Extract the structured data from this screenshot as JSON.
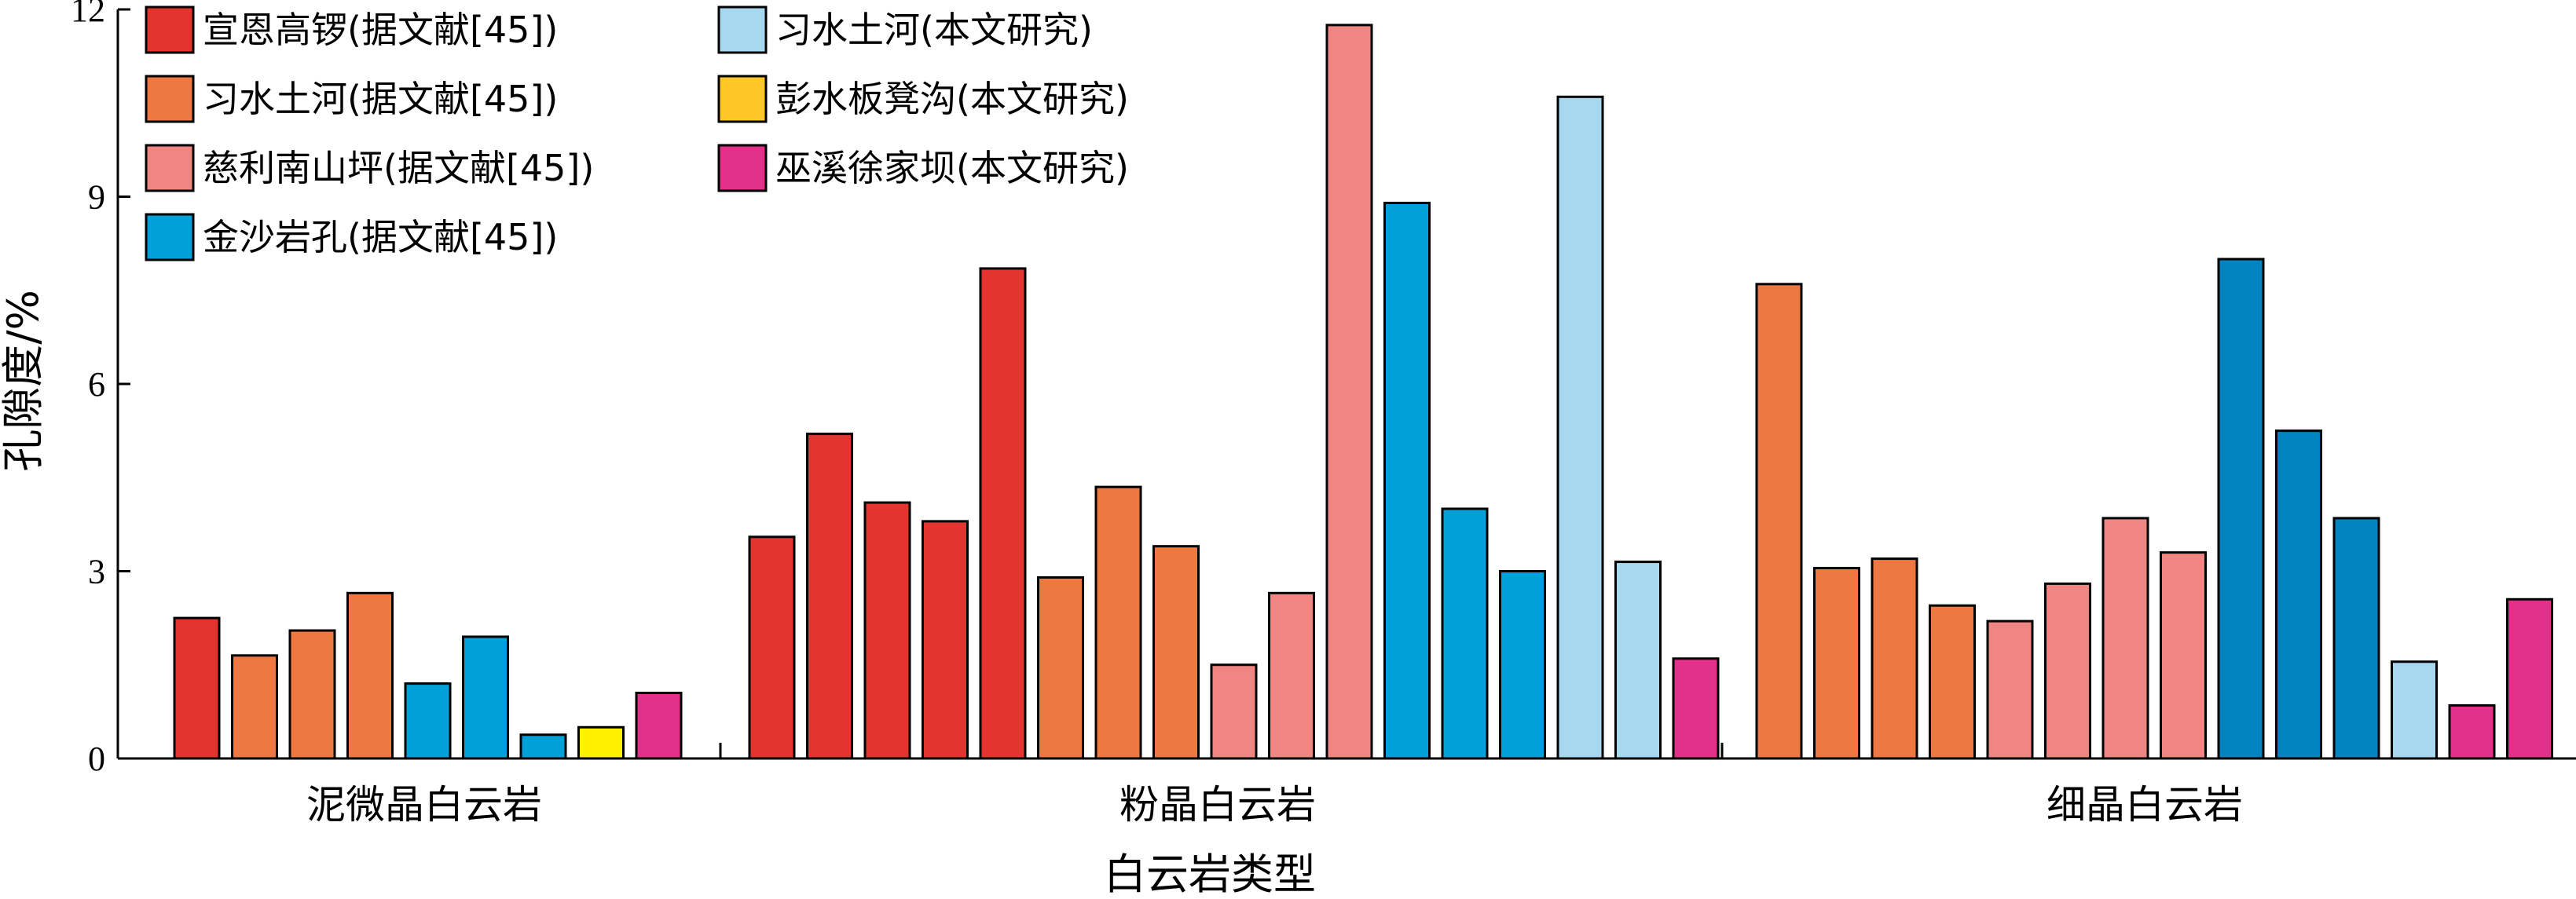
{
  "chart_data": {
    "type": "bar",
    "xlabel": "白云岩类型",
    "ylabel": "孔隙度/%",
    "ylim": [
      0,
      12
    ],
    "yticks": [
      "0",
      "3",
      "6",
      "9",
      "12"
    ],
    "categories": [
      "泥微晶白云岩",
      "粉晶白云岩",
      "细晶白云岩"
    ],
    "legend": [
      {
        "label": "宣恩高锣(据文献[45])",
        "color": "#e3342f"
      },
      {
        "label": "习水土河(据文献[45])",
        "color": "#ef7741"
      },
      {
        "label": "慈利南山坪(据文献[45])",
        "color": "#f08682"
      },
      {
        "label": "金沙岩孔(据文献[45])",
        "color": "#00a0d8"
      },
      {
        "label": "习水土河(本文研究)",
        "color": "#a7d8ef"
      },
      {
        "label": "彭水板凳沟(本文研究)",
        "color": "#ffc628"
      },
      {
        "label": "巫溪徐家坝(本文研究)",
        "color": "#e3308b"
      }
    ],
    "bars": [
      [
        {
          "value": 2.25,
          "color": "#e3342f"
        },
        {
          "value": 1.65,
          "color": "#ef7741"
        },
        {
          "value": 2.05,
          "color": "#ef7741"
        },
        {
          "value": 2.65,
          "color": "#ef7741"
        },
        {
          "value": 1.2,
          "color": "#00a0d8"
        },
        {
          "value": 1.95,
          "color": "#00a0d8"
        },
        {
          "value": 0.38,
          "color": "#00a0d8"
        },
        {
          "value": 0.5,
          "color": "#fff100"
        },
        {
          "value": 1.05,
          "color": "#e3308b"
        }
      ],
      [
        {
          "value": 3.55,
          "color": "#e3342f"
        },
        {
          "value": 5.2,
          "color": "#e3342f"
        },
        {
          "value": 4.1,
          "color": "#e3342f"
        },
        {
          "value": 3.8,
          "color": "#e3342f"
        },
        {
          "value": 7.85,
          "color": "#e3342f"
        },
        {
          "value": 2.9,
          "color": "#ef7741"
        },
        {
          "value": 4.35,
          "color": "#ef7741"
        },
        {
          "value": 3.4,
          "color": "#ef7741"
        },
        {
          "value": 1.5,
          "color": "#f08682"
        },
        {
          "value": 2.65,
          "color": "#f08682"
        },
        {
          "value": 11.75,
          "color": "#f08682"
        },
        {
          "value": 8.9,
          "color": "#00a0d8"
        },
        {
          "value": 4.0,
          "color": "#00a0d8"
        },
        {
          "value": 3.0,
          "color": "#00a0d8"
        },
        {
          "value": 10.6,
          "color": "#a7d8ef"
        },
        {
          "value": 3.15,
          "color": "#a7d8ef"
        },
        {
          "value": 1.6,
          "color": "#e3308b"
        }
      ],
      [
        {
          "value": 7.6,
          "color": "#ef7741"
        },
        {
          "value": 3.05,
          "color": "#ef7741"
        },
        {
          "value": 3.2,
          "color": "#ef7741"
        },
        {
          "value": 2.45,
          "color": "#ef7741"
        },
        {
          "value": 2.2,
          "color": "#f08682"
        },
        {
          "value": 2.8,
          "color": "#f08682"
        },
        {
          "value": 3.85,
          "color": "#f08682"
        },
        {
          "value": 3.3,
          "color": "#f08682"
        },
        {
          "value": 8.0,
          "color": "#0083bf"
        },
        {
          "value": 5.25,
          "color": "#0083bf"
        },
        {
          "value": 3.85,
          "color": "#0083bf"
        },
        {
          "value": 1.55,
          "color": "#a7d8ef"
        },
        {
          "value": 0.85,
          "color": "#e3308b"
        },
        {
          "value": 2.55,
          "color": "#e3308b"
        }
      ]
    ]
  }
}
